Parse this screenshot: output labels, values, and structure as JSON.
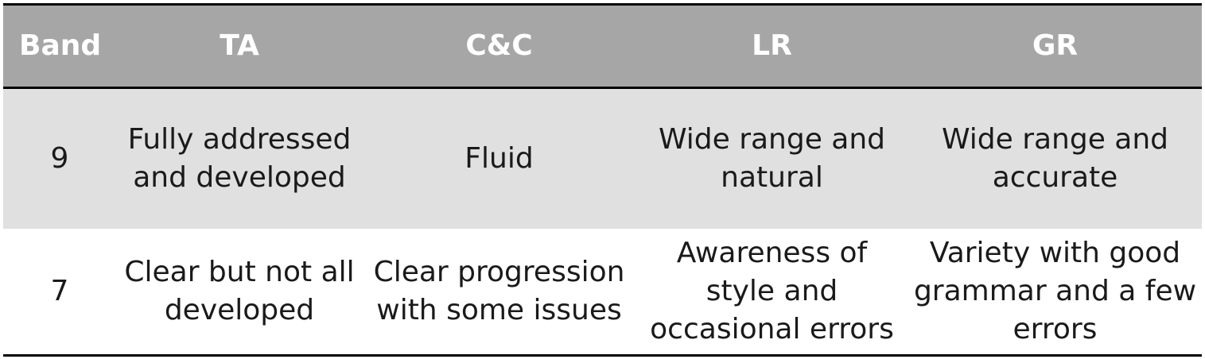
{
  "table": {
    "headers": [
      "Band",
      "TA",
      "C&C",
      "LR",
      "GR"
    ],
    "rows": [
      {
        "band": "9",
        "ta": "Fully addressed and developed",
        "cc": "Fluid",
        "lr": "Wide range and natural",
        "gr": "Wide range and accurate"
      },
      {
        "band": "7",
        "ta": "Clear but not all developed",
        "cc": "Clear progression with some issues",
        "lr": "Awareness of style and occasional errors",
        "gr": "Variety with good grammar and a few errors"
      }
    ]
  },
  "colors": {
    "header_bg": "#a6a6a6",
    "band9_bg": "#e0e0e0",
    "band7_bg": "#ffffff",
    "rule": "#000000"
  }
}
